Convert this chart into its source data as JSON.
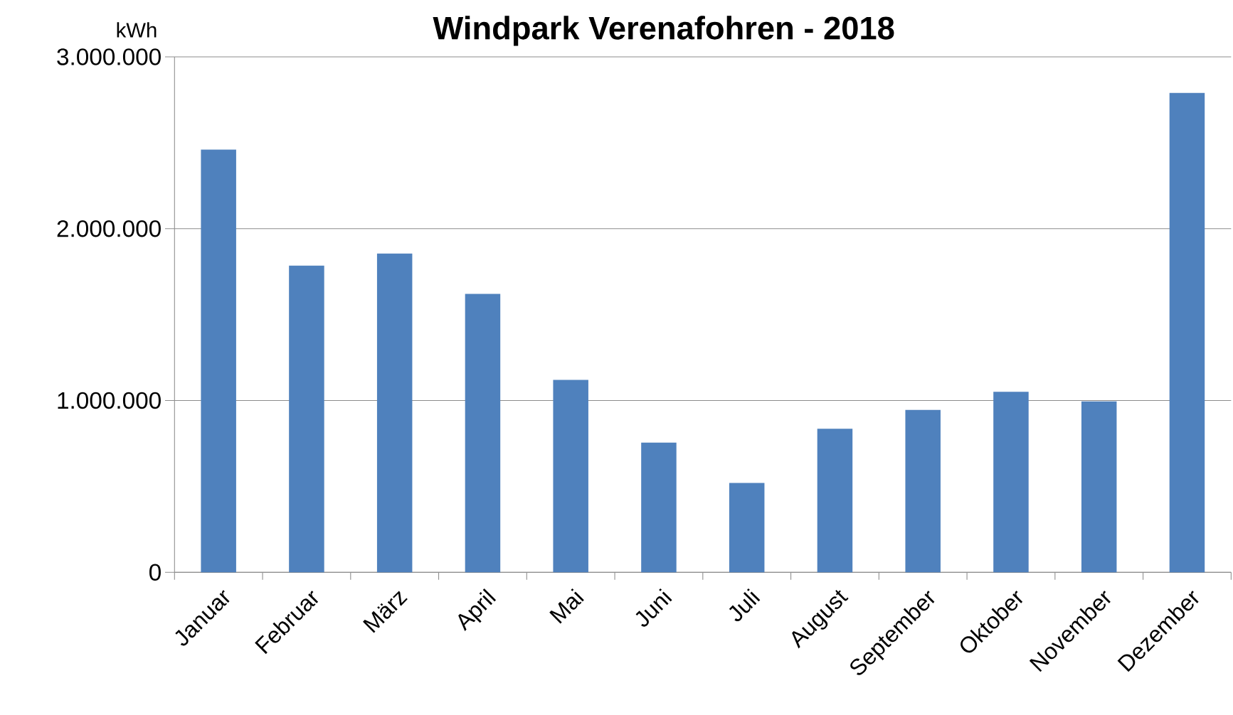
{
  "chart_data": {
    "type": "bar",
    "title": "Windpark Verenafohren - 2018",
    "ylabel": "kWh",
    "categories": [
      "Januar",
      "Februar",
      "März",
      "April",
      "Mai",
      "Juni",
      "Juli",
      "August",
      "September",
      "Oktober",
      "November",
      "Dezember"
    ],
    "values": [
      2460000,
      1785000,
      1855000,
      1620000,
      1120000,
      755000,
      520000,
      835000,
      945000,
      1050000,
      995000,
      2790000
    ],
    "color": "#4f81bd",
    "ylim": [
      0,
      3000000
    ],
    "yticks": [
      {
        "value": 0,
        "label": "0"
      },
      {
        "value": 1000000,
        "label": "1.000.000"
      },
      {
        "value": 2000000,
        "label": "2.000.000"
      },
      {
        "value": 3000000,
        "label": "3.000.000"
      }
    ],
    "grid": "y"
  }
}
